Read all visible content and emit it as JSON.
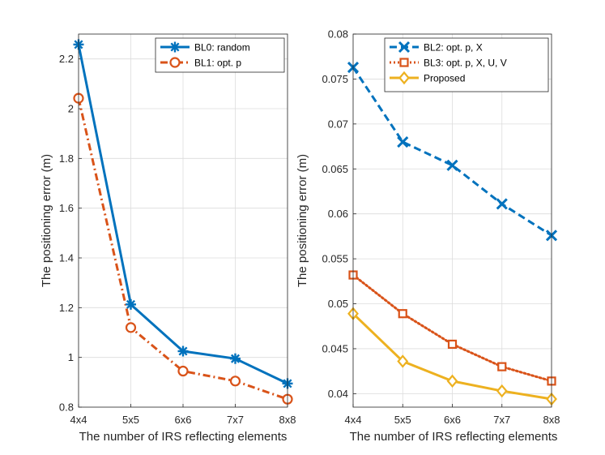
{
  "chart_data": [
    {
      "type": "line",
      "title": "",
      "xlabel": "The number of IRS reflecting elements",
      "ylabel": "The positioning error (m)",
      "categories": [
        "4x4",
        "5x5",
        "6x6",
        "7x7",
        "8x8"
      ],
      "ylim": [
        0.8,
        2.3
      ],
      "yticks": [
        0.8,
        1,
        1.2,
        1.4,
        1.6,
        1.8,
        2,
        2.2
      ],
      "ytick_labels": [
        "0.8",
        "1",
        "1.2",
        "1.4",
        "1.6",
        "1.8",
        "2",
        "2.2"
      ],
      "grid": true,
      "legend_position": "top-right",
      "series": [
        {
          "name": "BL0: random",
          "values": [
            2.258,
            1.213,
            1.025,
            0.995,
            0.895
          ],
          "color": "#0072BD",
          "dash": "solid",
          "marker": "asterisk"
        },
        {
          "name": "BL1: opt. p",
          "values": [
            2.042,
            1.12,
            0.945,
            0.905,
            0.832
          ],
          "color": "#D95319",
          "dash": "dashdot",
          "marker": "circle"
        }
      ]
    },
    {
      "type": "line",
      "title": "",
      "xlabel": "The number of IRS reflecting elements",
      "ylabel": "The positioning error (m)",
      "categories": [
        "4x4",
        "5x5",
        "6x6",
        "7x7",
        "8x8"
      ],
      "ylim": [
        0.0385,
        0.08
      ],
      "yticks": [
        0.04,
        0.045,
        0.05,
        0.055,
        0.06,
        0.065,
        0.07,
        0.075,
        0.08
      ],
      "ytick_labels": [
        "0.04",
        "0.045",
        "0.05",
        "0.055",
        "0.06",
        "0.065",
        "0.07",
        "0.075",
        "0.08"
      ],
      "grid": true,
      "legend_position": "top-right",
      "series": [
        {
          "name": "BL2: opt. p, X",
          "values": [
            0.0763,
            0.068,
            0.0654,
            0.0611,
            0.0576
          ],
          "color": "#0072BD",
          "dash": "dashed",
          "marker": "x"
        },
        {
          "name": "BL3: opt. p, X, U, V",
          "values": [
            0.0532,
            0.0489,
            0.0455,
            0.043,
            0.0414
          ],
          "color": "#D95319",
          "dash": "dotted",
          "marker": "square"
        },
        {
          "name": "Proposed",
          "values": [
            0.0489,
            0.0436,
            0.0414,
            0.0403,
            0.0394
          ],
          "color": "#EDB120",
          "dash": "solid",
          "marker": "diamond"
        }
      ]
    }
  ]
}
